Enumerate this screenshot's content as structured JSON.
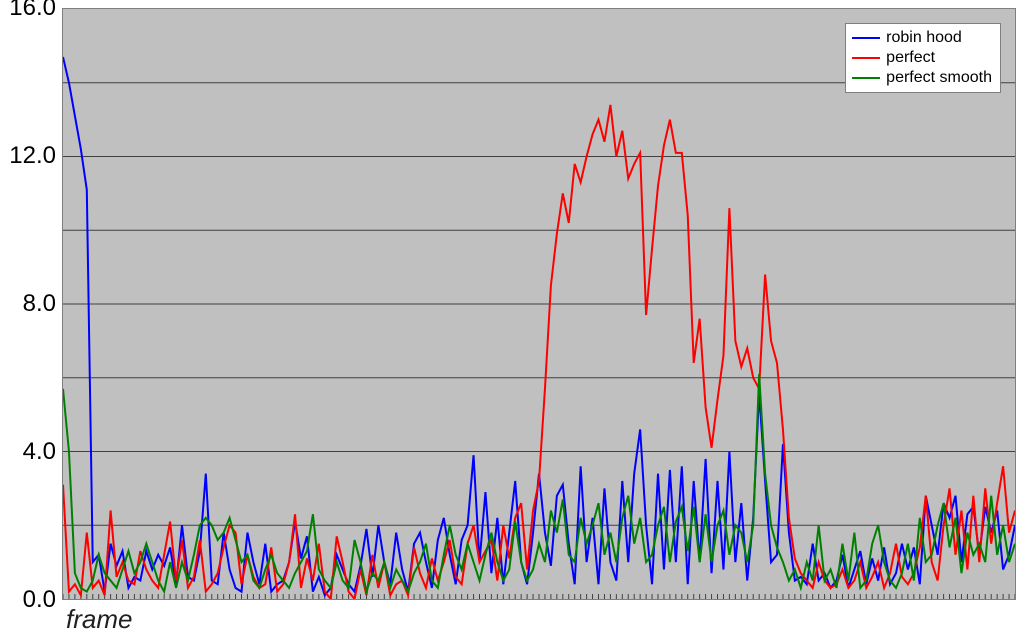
{
  "chart": {
    "type": "line",
    "background_color": "#c0c0c0",
    "plot_border_color": "#7f7f7f",
    "grid_color": "#404040",
    "grid_width": 1,
    "tick_color": "#404040",
    "xlabel": "frame",
    "xlabel_fontsize": 26,
    "xlabel_fontstyle": "italic",
    "xlabel_color": "#1f1f1f",
    "ylim": [
      0,
      16
    ],
    "y_ticks": [
      0.0,
      2.0,
      4.0,
      6.0,
      8.0,
      10.0,
      12.0,
      14.0,
      16.0
    ],
    "y_tick_labels": [
      "0.0",
      "4.0",
      "8.0",
      "12.0",
      "16.0"
    ],
    "y_tick_label_positions": [
      0.0,
      4.0,
      8.0,
      12.0,
      16.0
    ],
    "y_label_fontsize": 24,
    "x_range": [
      0,
      160
    ],
    "x_minor_tick_step": 1,
    "line_width": 2,
    "legend": {
      "position": "top-right",
      "background": "#ffffff",
      "border": "#7f7f7f",
      "fontsize": 16,
      "items": [
        {
          "label": "robin hood",
          "color": "#0000ff"
        },
        {
          "label": "perfect",
          "color": "#ff0000"
        },
        {
          "label": "perfect smooth",
          "color": "#008000"
        }
      ]
    },
    "series": [
      {
        "name": "robin hood",
        "color": "#0000ff",
        "values": [
          14.7,
          14.0,
          13.1,
          12.2,
          11.1,
          1.0,
          1.2,
          0.2,
          1.5,
          0.9,
          1.3,
          0.3,
          0.6,
          0.5,
          1.3,
          0.8,
          1.2,
          0.9,
          1.4,
          0.4,
          2.0,
          0.6,
          0.5,
          1.3,
          3.4,
          0.5,
          0.4,
          1.8,
          0.8,
          0.3,
          0.2,
          1.8,
          1.0,
          0.4,
          1.5,
          0.2,
          0.4,
          0.5,
          1.0,
          2.1,
          1.1,
          1.7,
          0.2,
          0.6,
          0.1,
          0.3,
          1.2,
          0.8,
          0.4,
          0.2,
          0.9,
          1.9,
          0.6,
          2.0,
          1.0,
          0.4,
          1.8,
          0.8,
          0.2,
          1.5,
          1.8,
          1.0,
          0.3,
          1.6,
          2.2,
          1.2,
          0.4,
          1.6,
          2.0,
          3.9,
          1.0,
          2.9,
          0.7,
          2.2,
          0.4,
          1.8,
          3.2,
          1.0,
          0.4,
          1.8,
          3.4,
          1.8,
          0.9,
          2.8,
          3.1,
          1.5,
          0.4,
          3.6,
          1.0,
          2.2,
          0.4,
          3.0,
          1.0,
          0.5,
          3.2,
          1.0,
          3.4,
          4.6,
          2.0,
          0.4,
          3.4,
          0.8,
          3.5,
          1.0,
          3.6,
          0.4,
          3.2,
          1.0,
          3.8,
          0.7,
          3.2,
          0.8,
          4.0,
          1.0,
          2.6,
          0.5,
          2.2,
          5.6,
          3.2,
          1.0,
          1.2,
          4.2,
          1.8,
          0.5,
          0.6,
          0.4,
          1.5,
          0.5,
          0.7,
          0.3,
          0.5,
          1.2,
          0.3,
          0.8,
          1.3,
          0.4,
          1.1,
          0.5,
          1.4,
          0.4,
          0.7,
          1.5,
          0.8,
          1.4,
          0.4,
          2.8,
          2.0,
          1.2,
          2.6,
          2.2,
          2.8,
          1.0,
          2.3,
          2.5,
          1.2,
          2.5,
          1.8,
          2.4,
          0.8,
          1.2,
          2.0
        ]
      },
      {
        "name": "perfect",
        "color": "#ff0000",
        "values": [
          3.1,
          0.2,
          0.4,
          0.1,
          1.8,
          0.3,
          0.5,
          0.1,
          2.4,
          0.6,
          1.0,
          0.5,
          0.4,
          1.3,
          0.8,
          0.5,
          0.3,
          1.2,
          2.1,
          0.5,
          1.6,
          0.3,
          0.6,
          1.6,
          0.2,
          0.4,
          0.7,
          1.4,
          2.0,
          1.8,
          0.4,
          1.2,
          0.6,
          0.3,
          0.4,
          1.4,
          0.2,
          0.4,
          1.0,
          2.3,
          0.3,
          1.1,
          0.5,
          1.5,
          0.2,
          0.0,
          1.7,
          1.0,
          0.2,
          0.0,
          0.8,
          0.1,
          1.2,
          0.3,
          1.0,
          0.1,
          0.4,
          0.5,
          0.1,
          1.4,
          0.7,
          0.3,
          1.1,
          0.5,
          1.0,
          1.6,
          0.6,
          0.4,
          1.5,
          2.0,
          1.0,
          1.3,
          1.6,
          0.5,
          2.0,
          1.1,
          2.2,
          2.6,
          0.8,
          2.4,
          3.2,
          5.7,
          8.5,
          9.9,
          11.0,
          10.2,
          11.8,
          11.3,
          12.0,
          12.6,
          13.0,
          12.4,
          13.4,
          12.0,
          12.7,
          11.4,
          11.8,
          12.1,
          7.7,
          9.5,
          11.2,
          12.3,
          13.0,
          12.1,
          12.1,
          10.4,
          6.4,
          7.6,
          5.2,
          4.1,
          5.4,
          6.6,
          10.6,
          7.0,
          6.3,
          6.8,
          6.0,
          5.7,
          8.8,
          7.0,
          6.4,
          4.6,
          2.2,
          1.1,
          0.7,
          0.5,
          0.3,
          1.0,
          0.5,
          0.3,
          0.4,
          0.8,
          0.3,
          0.5,
          1.0,
          0.3,
          0.6,
          1.0,
          0.3,
          0.7,
          1.5,
          0.6,
          0.4,
          0.7,
          1.4,
          2.8,
          1.0,
          0.5,
          2.0,
          3.0,
          1.2,
          2.4,
          0.8,
          2.8,
          1.0,
          3.0,
          1.5,
          2.6,
          3.6,
          1.8,
          2.4
        ]
      },
      {
        "name": "perfect smooth",
        "color": "#008000",
        "values": [
          5.7,
          4.0,
          0.7,
          0.3,
          0.2,
          0.5,
          1.2,
          0.7,
          0.5,
          0.3,
          0.8,
          1.3,
          0.7,
          1.0,
          1.5,
          1.0,
          0.5,
          0.2,
          1.0,
          0.3,
          1.0,
          0.5,
          1.2,
          2.0,
          2.2,
          2.0,
          1.6,
          1.8,
          2.2,
          1.6,
          1.0,
          1.2,
          0.5,
          0.3,
          0.8,
          1.2,
          0.7,
          0.5,
          0.3,
          0.7,
          1.0,
          1.3,
          2.3,
          0.8,
          0.5,
          0.3,
          1.0,
          0.5,
          0.3,
          1.6,
          1.0,
          0.2,
          0.7,
          0.5,
          1.0,
          0.3,
          0.8,
          0.5,
          0.2,
          0.7,
          1.0,
          1.5,
          0.5,
          0.3,
          1.2,
          2.0,
          1.2,
          0.8,
          1.5,
          1.0,
          0.5,
          1.2,
          1.8,
          1.0,
          0.5,
          0.8,
          2.1,
          1.0,
          0.5,
          0.8,
          1.5,
          1.0,
          2.4,
          1.8,
          2.7,
          1.2,
          1.0,
          2.2,
          1.5,
          2.0,
          2.6,
          1.2,
          1.8,
          1.0,
          2.2,
          2.8,
          1.5,
          2.2,
          1.0,
          1.2,
          2.0,
          2.5,
          1.0,
          2.1,
          2.5,
          1.3,
          2.5,
          1.0,
          2.3,
          1.0,
          2.0,
          2.4,
          1.2,
          2.0,
          1.8,
          1.0,
          2.0,
          6.1,
          3.4,
          2.0,
          1.4,
          1.0,
          0.5,
          0.8,
          0.3,
          1.0,
          0.5,
          2.0,
          0.5,
          0.8,
          0.3,
          1.5,
          0.5,
          1.8,
          0.3,
          0.5,
          1.5,
          2.0,
          1.0,
          0.5,
          0.3,
          0.7,
          1.5,
          0.5,
          2.2,
          1.0,
          1.2,
          2.0,
          2.6,
          1.4,
          2.2,
          0.7,
          1.8,
          1.2,
          1.5,
          1.0,
          2.8,
          1.2,
          2.0,
          1.0,
          1.5
        ]
      }
    ]
  }
}
